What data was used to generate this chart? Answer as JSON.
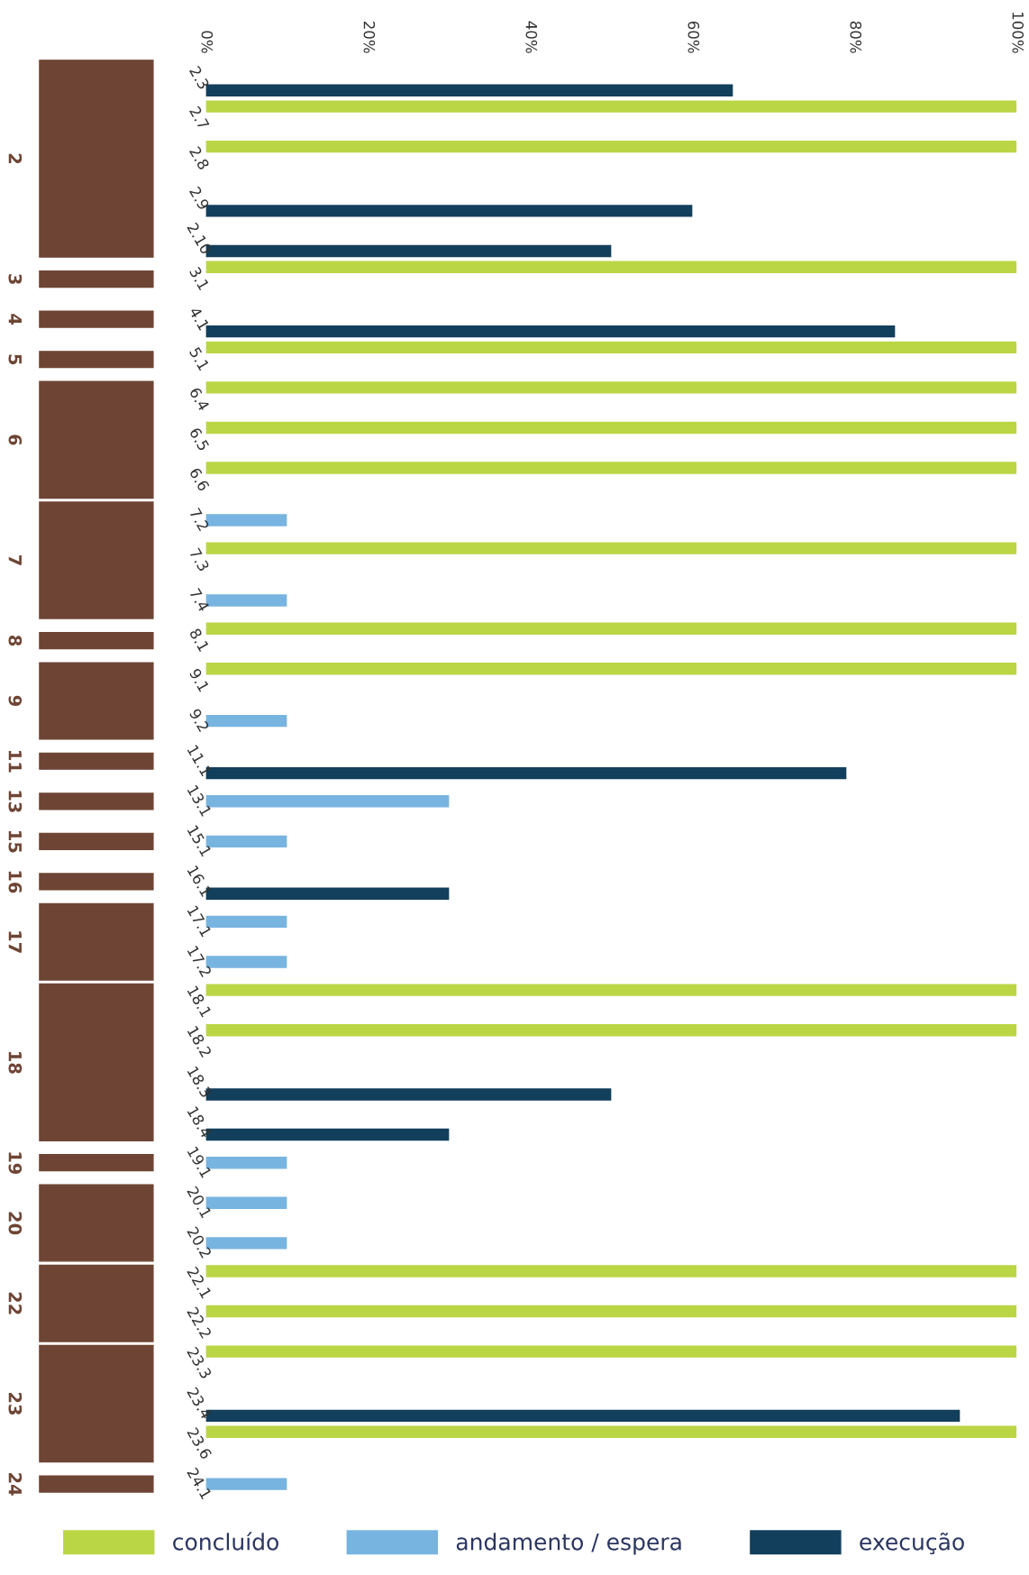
{
  "chart_data": {
    "type": "bar",
    "orientation": "horizontal",
    "categories": [
      "2.3",
      "2.7",
      "2.8",
      "2.9",
      "2.10",
      "3.1",
      "4.1",
      "5.1",
      "6.4",
      "6.5",
      "6.6",
      "7.2",
      "7.3",
      "7.4",
      "8.1",
      "9.1",
      "9.2",
      "11.1",
      "13.1",
      "15.1",
      "16.1",
      "17.1",
      "17.2",
      "18.1",
      "18.2",
      "18.3",
      "18.4",
      "19.1",
      "20.1",
      "20.2",
      "22.1",
      "22.2",
      "23.3",
      "23.4",
      "23.6",
      "24.1"
    ],
    "series": [
      {
        "name": "concluído",
        "color": "#bbd645",
        "values": [
          null,
          100,
          100,
          null,
          null,
          100,
          null,
          100,
          100,
          100,
          100,
          null,
          100,
          null,
          100,
          100,
          null,
          null,
          null,
          null,
          null,
          null,
          null,
          100,
          100,
          null,
          null,
          null,
          null,
          null,
          100,
          100,
          100,
          null,
          100,
          null
        ]
      },
      {
        "name": "andamento / espera",
        "color": "#78b4e0",
        "values": [
          null,
          null,
          null,
          null,
          null,
          null,
          null,
          null,
          null,
          null,
          null,
          10,
          null,
          10,
          null,
          null,
          10,
          null,
          30,
          10,
          null,
          10,
          10,
          null,
          null,
          null,
          null,
          10,
          10,
          10,
          null,
          null,
          null,
          null,
          null,
          10
        ]
      },
      {
        "name": "execução",
        "color": "#123f5c",
        "values": [
          65,
          null,
          null,
          60,
          50,
          null,
          85,
          null,
          null,
          null,
          null,
          null,
          null,
          null,
          null,
          null,
          null,
          79,
          null,
          null,
          30,
          null,
          null,
          null,
          null,
          50,
          30,
          null,
          null,
          null,
          null,
          null,
          null,
          93,
          null,
          null
        ]
      }
    ],
    "xlim": [
      0,
      100
    ],
    "xticks": [
      {
        "value": 0,
        "label": "0%"
      },
      {
        "value": 20,
        "label": "20%"
      },
      {
        "value": 40,
        "label": "40%"
      },
      {
        "value": 60,
        "label": "60%"
      },
      {
        "value": 80,
        "label": "80%"
      },
      {
        "value": 100,
        "label": "100%"
      }
    ],
    "annotations": [
      "2",
      "3",
      "4",
      "5",
      "6",
      "7",
      "8",
      "9",
      "11",
      "13",
      "15",
      "16",
      "17",
      "18",
      "19",
      "20",
      "22",
      "23",
      "24"
    ],
    "legend": "bottom",
    "grid": false
  }
}
